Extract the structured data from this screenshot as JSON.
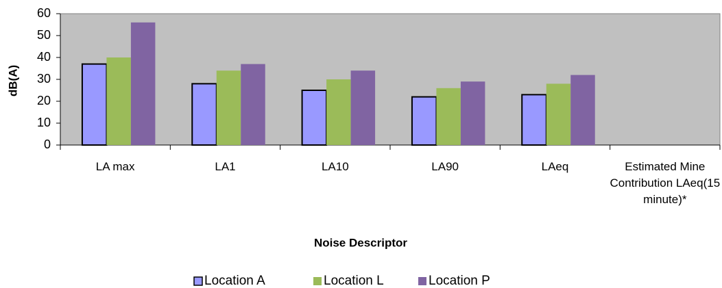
{
  "chart_data": {
    "type": "bar",
    "categories": [
      "LA max",
      "LA1",
      "LA10",
      "LA90",
      "LAeq",
      "Estimated Mine Contribution LAeq(15 minute)*"
    ],
    "series": [
      {
        "name": "Location A",
        "color": "#9999ff",
        "values": [
          37,
          28,
          25,
          22,
          23,
          null
        ]
      },
      {
        "name": "Location L",
        "color": "#9bbb59",
        "values": [
          40,
          34,
          30,
          26,
          28,
          null
        ]
      },
      {
        "name": "Location P",
        "color": "#8064a2",
        "values": [
          56,
          37,
          34,
          29,
          32,
          null
        ]
      }
    ],
    "x_label": "Noise Descriptor",
    "y_label": "dB(A)",
    "ylim": [
      0,
      60
    ],
    "yticks": [
      0,
      10,
      20,
      30,
      40,
      50,
      60
    ],
    "grid": false,
    "legend": "bottom",
    "plot_background": "#c0c0c0"
  }
}
